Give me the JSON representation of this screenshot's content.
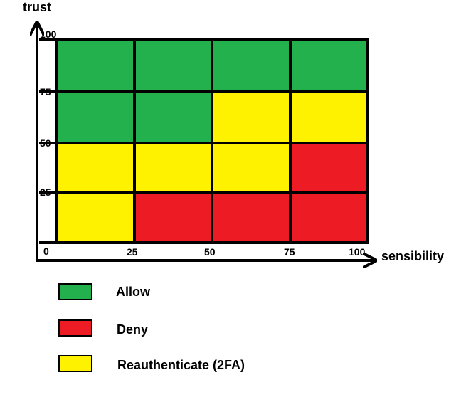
{
  "colors": {
    "allow": "#22b14c",
    "deny": "#ed1c24",
    "reauth": "#fff200",
    "line": "#000000"
  },
  "axes": {
    "y_title": "trust",
    "x_title": "sensibility",
    "y_ticks": [
      "100",
      "75",
      "50",
      "25"
    ],
    "x_ticks": [
      "25",
      "50",
      "75",
      "100"
    ],
    "origin": "0"
  },
  "chart_data": {
    "type": "heatmap",
    "xlabel": "sensibility",
    "ylabel": "trust",
    "xlim": [
      0,
      100
    ],
    "ylim": [
      0,
      100
    ],
    "x_bins": [
      "0-25",
      "25-50",
      "50-75",
      "75-100"
    ],
    "y_bins": [
      "75-100",
      "50-75",
      "25-50",
      "0-25"
    ],
    "cells": [
      [
        "allow",
        "allow",
        "allow",
        "allow"
      ],
      [
        "allow",
        "allow",
        "reauth",
        "reauth"
      ],
      [
        "reauth",
        "reauth",
        "reauth",
        "deny"
      ],
      [
        "reauth",
        "deny",
        "deny",
        "deny"
      ]
    ]
  },
  "legend": [
    {
      "key": "allow",
      "label": "Allow"
    },
    {
      "key": "deny",
      "label": "Deny"
    },
    {
      "key": "reauth",
      "label": "Reauthenticate (2FA)"
    }
  ]
}
